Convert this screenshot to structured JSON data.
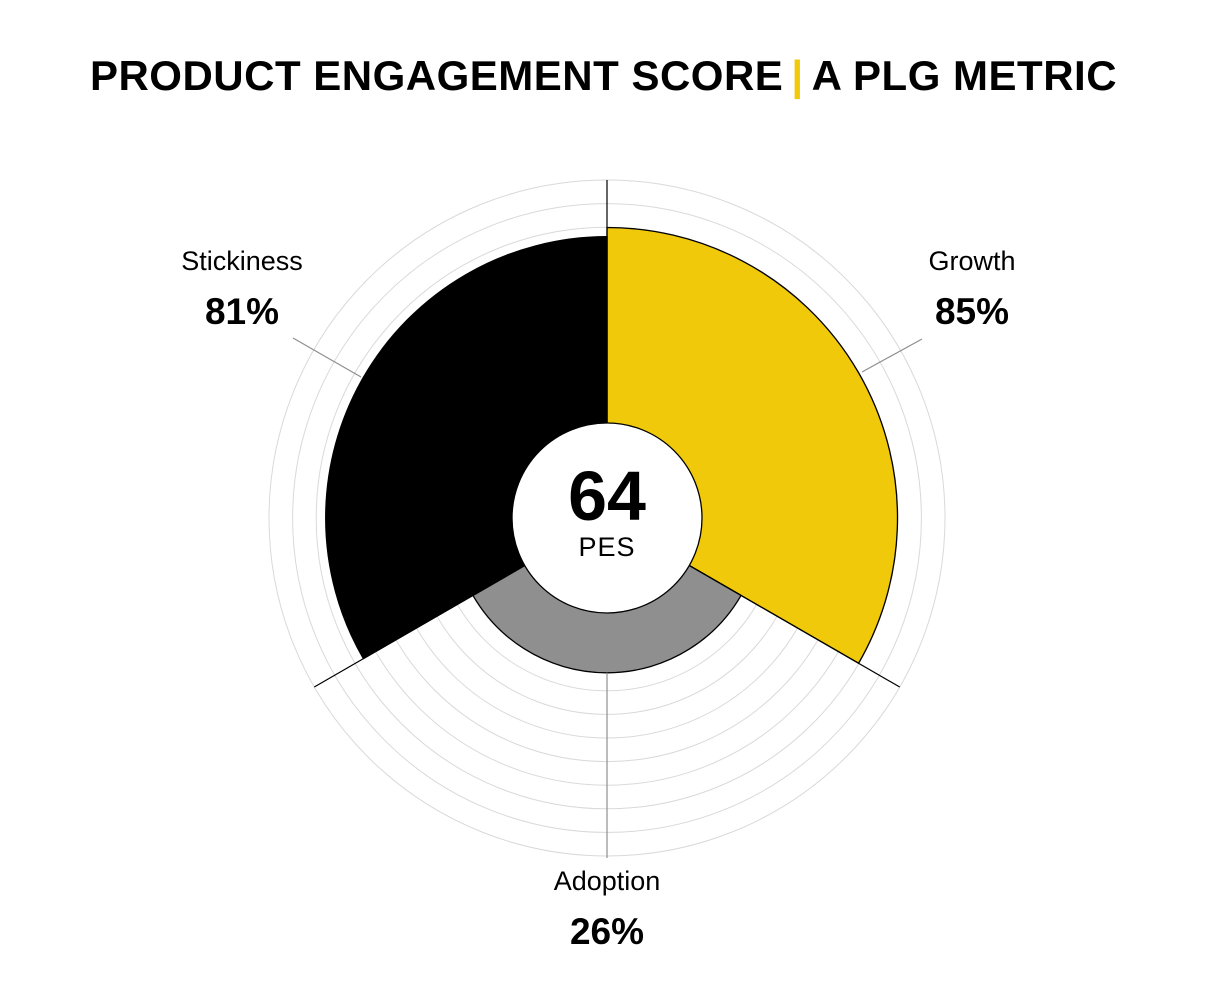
{
  "title": {
    "left": "PRODUCT ENGAGEMENT SCORE",
    "separator": "|",
    "right": "A PLG METRIC"
  },
  "center": {
    "score": "64",
    "label": "PES"
  },
  "colors": {
    "growth": "#f1c90b",
    "adoption": "#8f8f8f",
    "stickiness": "#000000",
    "accent": "#f1c90b",
    "grid": "#d9d9d9"
  },
  "chart_data": {
    "type": "polar-area",
    "categories": [
      "Growth",
      "Adoption",
      "Stickiness"
    ],
    "values": [
      85,
      26,
      81
    ],
    "value_labels": [
      "85%",
      "26%",
      "81%"
    ],
    "rlim": [
      0,
      100
    ],
    "grid": true
  }
}
